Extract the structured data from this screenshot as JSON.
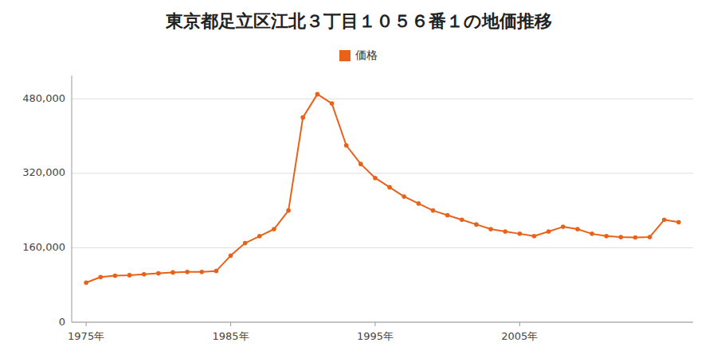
{
  "chart_data": {
    "type": "line",
    "title": "東京都足立区江北３丁目１０５６番１の地価推移",
    "x": [
      1975,
      1976,
      1977,
      1978,
      1979,
      1980,
      1981,
      1982,
      1983,
      1984,
      1985,
      1986,
      1987,
      1988,
      1989,
      1990,
      1991,
      1992,
      1993,
      1994,
      1995,
      1996,
      1997,
      1998,
      1999,
      2000,
      2001,
      2002,
      2003,
      2004,
      2005,
      2006,
      2007,
      2008,
      2009,
      2010,
      2011,
      2012,
      2013,
      2014,
      2015,
      2016
    ],
    "series": [
      {
        "name": "価格",
        "color": "#e8621a",
        "marker": "circle",
        "values": [
          85000,
          97000,
          100000,
          101000,
          103000,
          105000,
          107000,
          108000,
          108000,
          110000,
          143000,
          170000,
          185000,
          200000,
          240000,
          440000,
          490000,
          470000,
          380000,
          340000,
          310000,
          290000,
          270000,
          255000,
          240000,
          230000,
          220000,
          210000,
          200000,
          195000,
          190000,
          185000,
          195000,
          205000,
          200000,
          190000,
          185000,
          183000,
          182000,
          183000,
          220000,
          215000
        ]
      }
    ],
    "xlim": [
      1974,
      2017
    ],
    "ylim": [
      0,
      530000
    ],
    "xticks": [
      {
        "value": 1975,
        "label": "1975年"
      },
      {
        "value": 1985,
        "label": "1985年"
      },
      {
        "value": 1995,
        "label": "1995年"
      },
      {
        "value": 2005,
        "label": "2005年"
      }
    ],
    "yticks": [
      0,
      {
        "value": 160000,
        "label": "160,000"
      },
      {
        "value": 320000,
        "label": "320,000"
      },
      {
        "value": 480000,
        "label": "480,000"
      }
    ],
    "grid": true,
    "legend": "top"
  }
}
